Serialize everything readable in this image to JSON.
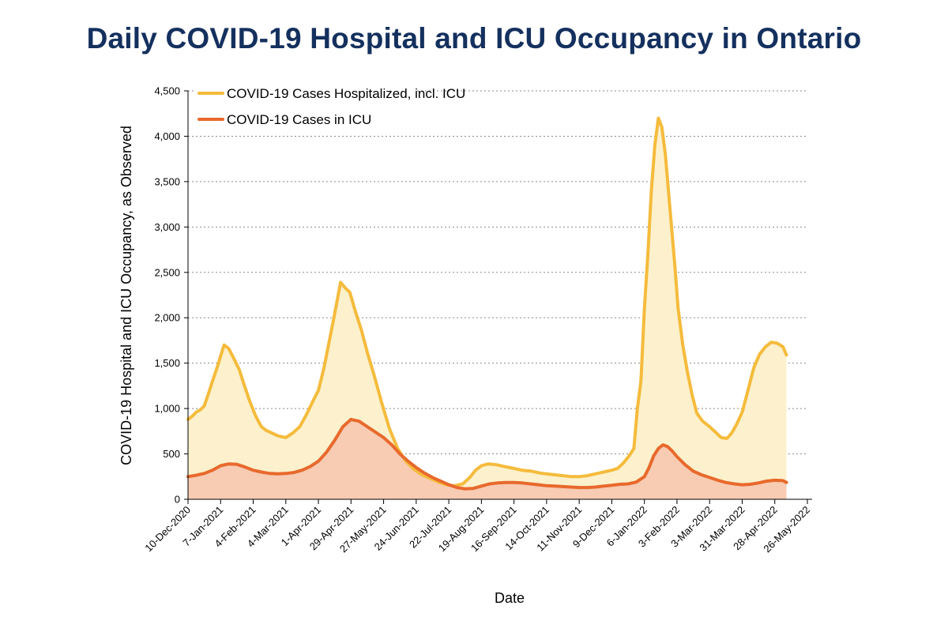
{
  "chart_data": {
    "type": "area",
    "title": "Daily COVID-19 Hospital and ICU Occupancy in Ontario",
    "xlabel": "Date",
    "ylabel": "COVID-19 Hospital and ICU Occupancy, as Observed",
    "ylim": [
      0,
      4500
    ],
    "xlim": [
      "2020-12-10",
      "2022-05-26"
    ],
    "y_ticks": [
      0,
      500,
      1000,
      1500,
      2000,
      2500,
      3000,
      3500,
      4000,
      4500
    ],
    "y_tick_labels": [
      "0",
      "500",
      "1,000",
      "1,500",
      "2,000",
      "2,500",
      "3,000",
      "3,500",
      "4,000",
      "4,500"
    ],
    "x_ticks": [
      "2020-12-10",
      "2021-01-07",
      "2021-02-04",
      "2021-03-04",
      "2021-04-01",
      "2021-04-29",
      "2021-05-27",
      "2021-06-24",
      "2021-07-22",
      "2021-08-19",
      "2021-09-16",
      "2021-10-14",
      "2021-11-11",
      "2021-12-09",
      "2022-01-06",
      "2022-02-03",
      "2022-03-03",
      "2022-03-31",
      "2022-04-28",
      "2022-05-26"
    ],
    "x_tick_labels": [
      "10-Dec-2020",
      "7-Jan-2021",
      "4-Feb-2021",
      "4-Mar-2021",
      "1-Apr-2021",
      "29-Apr-2021",
      "27-May-2021",
      "24-Jun-2021",
      "22-Jul-2021",
      "19-Aug-2021",
      "16-Sep-2021",
      "14-Oct-2021",
      "11-Nov-2021",
      "9-Dec-2021",
      "6-Jan-2022",
      "3-Feb-2022",
      "3-Mar-2022",
      "31-Mar-2022",
      "28-Apr-2022",
      "26-May-2022"
    ],
    "grid": "horizontal-dashed",
    "legend": "top-left",
    "series": [
      {
        "name": "COVID-19 Cases Hospitalized, incl. ICU",
        "color": "#f5bb3c",
        "fill": "#fcf1cc",
        "x": [
          "2020-12-10",
          "2020-12-14",
          "2020-12-17",
          "2020-12-21",
          "2020-12-24",
          "2020-12-28",
          "2020-12-31",
          "2021-01-04",
          "2021-01-07",
          "2021-01-10",
          "2021-01-14",
          "2021-01-18",
          "2021-01-23",
          "2021-01-27",
          "2021-02-01",
          "2021-02-06",
          "2021-02-11",
          "2021-02-15",
          "2021-02-20",
          "2021-02-25",
          "2021-03-04",
          "2021-03-10",
          "2021-03-16",
          "2021-03-22",
          "2021-03-28",
          "2021-04-01",
          "2021-04-06",
          "2021-04-10",
          "2021-04-14",
          "2021-04-17",
          "2021-04-20",
          "2021-04-24",
          "2021-04-28",
          "2021-05-03",
          "2021-05-08",
          "2021-05-13",
          "2021-05-19",
          "2021-05-25",
          "2021-06-01",
          "2021-06-08",
          "2021-06-15",
          "2021-06-22",
          "2021-06-29",
          "2021-07-06",
          "2021-07-13",
          "2021-07-20",
          "2021-07-27",
          "2021-08-03",
          "2021-08-09",
          "2021-08-14",
          "2021-08-19",
          "2021-08-25",
          "2021-09-01",
          "2021-09-08",
          "2021-09-16",
          "2021-09-23",
          "2021-10-01",
          "2021-10-08",
          "2021-10-14",
          "2021-10-21",
          "2021-10-28",
          "2021-11-04",
          "2021-11-11",
          "2021-11-18",
          "2021-11-25",
          "2021-12-02",
          "2021-12-09",
          "2021-12-14",
          "2021-12-19",
          "2021-12-24",
          "2021-12-28",
          "2021-12-31",
          "2022-01-03",
          "2022-01-06",
          "2022-01-09",
          "2022-01-12",
          "2022-01-15",
          "2022-01-18",
          "2022-01-21",
          "2022-01-24",
          "2022-01-28",
          "2022-02-01",
          "2022-02-04",
          "2022-02-08",
          "2022-02-12",
          "2022-02-16",
          "2022-02-20",
          "2022-02-25",
          "2022-03-03",
          "2022-03-08",
          "2022-03-13",
          "2022-03-18",
          "2022-03-22",
          "2022-03-26",
          "2022-03-31",
          "2022-04-05",
          "2022-04-10",
          "2022-04-15",
          "2022-04-20",
          "2022-04-25",
          "2022-04-30",
          "2022-05-05",
          "2022-05-08"
        ],
        "values": [
          880,
          920,
          960,
          990,
          1030,
          1180,
          1300,
          1450,
          1580,
          1700,
          1660,
          1560,
          1430,
          1270,
          1080,
          920,
          800,
          760,
          730,
          700,
          680,
          730,
          800,
          940,
          1100,
          1200,
          1460,
          1720,
          1980,
          2180,
          2390,
          2330,
          2280,
          2060,
          1860,
          1620,
          1360,
          1080,
          780,
          560,
          420,
          330,
          270,
          230,
          190,
          160,
          150,
          170,
          240,
          320,
          370,
          390,
          380,
          360,
          340,
          320,
          310,
          290,
          280,
          270,
          260,
          250,
          250,
          260,
          280,
          300,
          320,
          340,
          400,
          480,
          560,
          1000,
          1300,
          2100,
          2700,
          3400,
          3900,
          4200,
          4100,
          3800,
          3200,
          2600,
          2100,
          1700,
          1400,
          1150,
          950,
          860,
          800,
          740,
          680,
          670,
          730,
          820,
          960,
          1200,
          1450,
          1600,
          1680,
          1730,
          1720,
          1680,
          1590
        ]
      },
      {
        "name": "COVID-19 Cases in ICU",
        "color": "#e8692c",
        "fill": "#f8cbb3",
        "x": [
          "2020-12-10",
          "2020-12-17",
          "2020-12-24",
          "2020-12-31",
          "2021-01-07",
          "2021-01-14",
          "2021-01-21",
          "2021-01-28",
          "2021-02-04",
          "2021-02-11",
          "2021-02-18",
          "2021-02-25",
          "2021-03-04",
          "2021-03-11",
          "2021-03-18",
          "2021-03-25",
          "2021-04-01",
          "2021-04-08",
          "2021-04-15",
          "2021-04-22",
          "2021-04-29",
          "2021-05-06",
          "2021-05-13",
          "2021-05-20",
          "2021-05-27",
          "2021-06-03",
          "2021-06-10",
          "2021-06-17",
          "2021-06-24",
          "2021-07-01",
          "2021-07-08",
          "2021-07-15",
          "2021-07-22",
          "2021-07-29",
          "2021-08-05",
          "2021-08-12",
          "2021-08-19",
          "2021-08-26",
          "2021-09-02",
          "2021-09-09",
          "2021-09-16",
          "2021-09-23",
          "2021-09-30",
          "2021-10-07",
          "2021-10-14",
          "2021-10-21",
          "2021-10-28",
          "2021-11-04",
          "2021-11-11",
          "2021-11-18",
          "2021-11-25",
          "2021-12-02",
          "2021-12-09",
          "2021-12-16",
          "2021-12-23",
          "2021-12-30",
          "2022-01-06",
          "2022-01-10",
          "2022-01-14",
          "2022-01-18",
          "2022-01-22",
          "2022-01-26",
          "2022-01-30",
          "2022-02-03",
          "2022-02-10",
          "2022-02-17",
          "2022-02-24",
          "2022-03-03",
          "2022-03-10",
          "2022-03-17",
          "2022-03-24",
          "2022-03-31",
          "2022-04-07",
          "2022-04-14",
          "2022-04-21",
          "2022-04-28",
          "2022-05-05",
          "2022-05-08"
        ],
        "values": [
          250,
          265,
          285,
          320,
          370,
          390,
          385,
          355,
          320,
          300,
          285,
          280,
          285,
          295,
          320,
          360,
          420,
          520,
          650,
          800,
          880,
          860,
          800,
          740,
          680,
          600,
          500,
          420,
          350,
          290,
          240,
          200,
          160,
          130,
          115,
          120,
          145,
          170,
          180,
          185,
          185,
          180,
          170,
          160,
          150,
          145,
          140,
          135,
          130,
          130,
          135,
          145,
          155,
          165,
          170,
          190,
          250,
          350,
          480,
          560,
          600,
          580,
          530,
          470,
          380,
          310,
          270,
          240,
          210,
          185,
          170,
          160,
          165,
          180,
          200,
          210,
          205,
          185
        ]
      }
    ]
  }
}
